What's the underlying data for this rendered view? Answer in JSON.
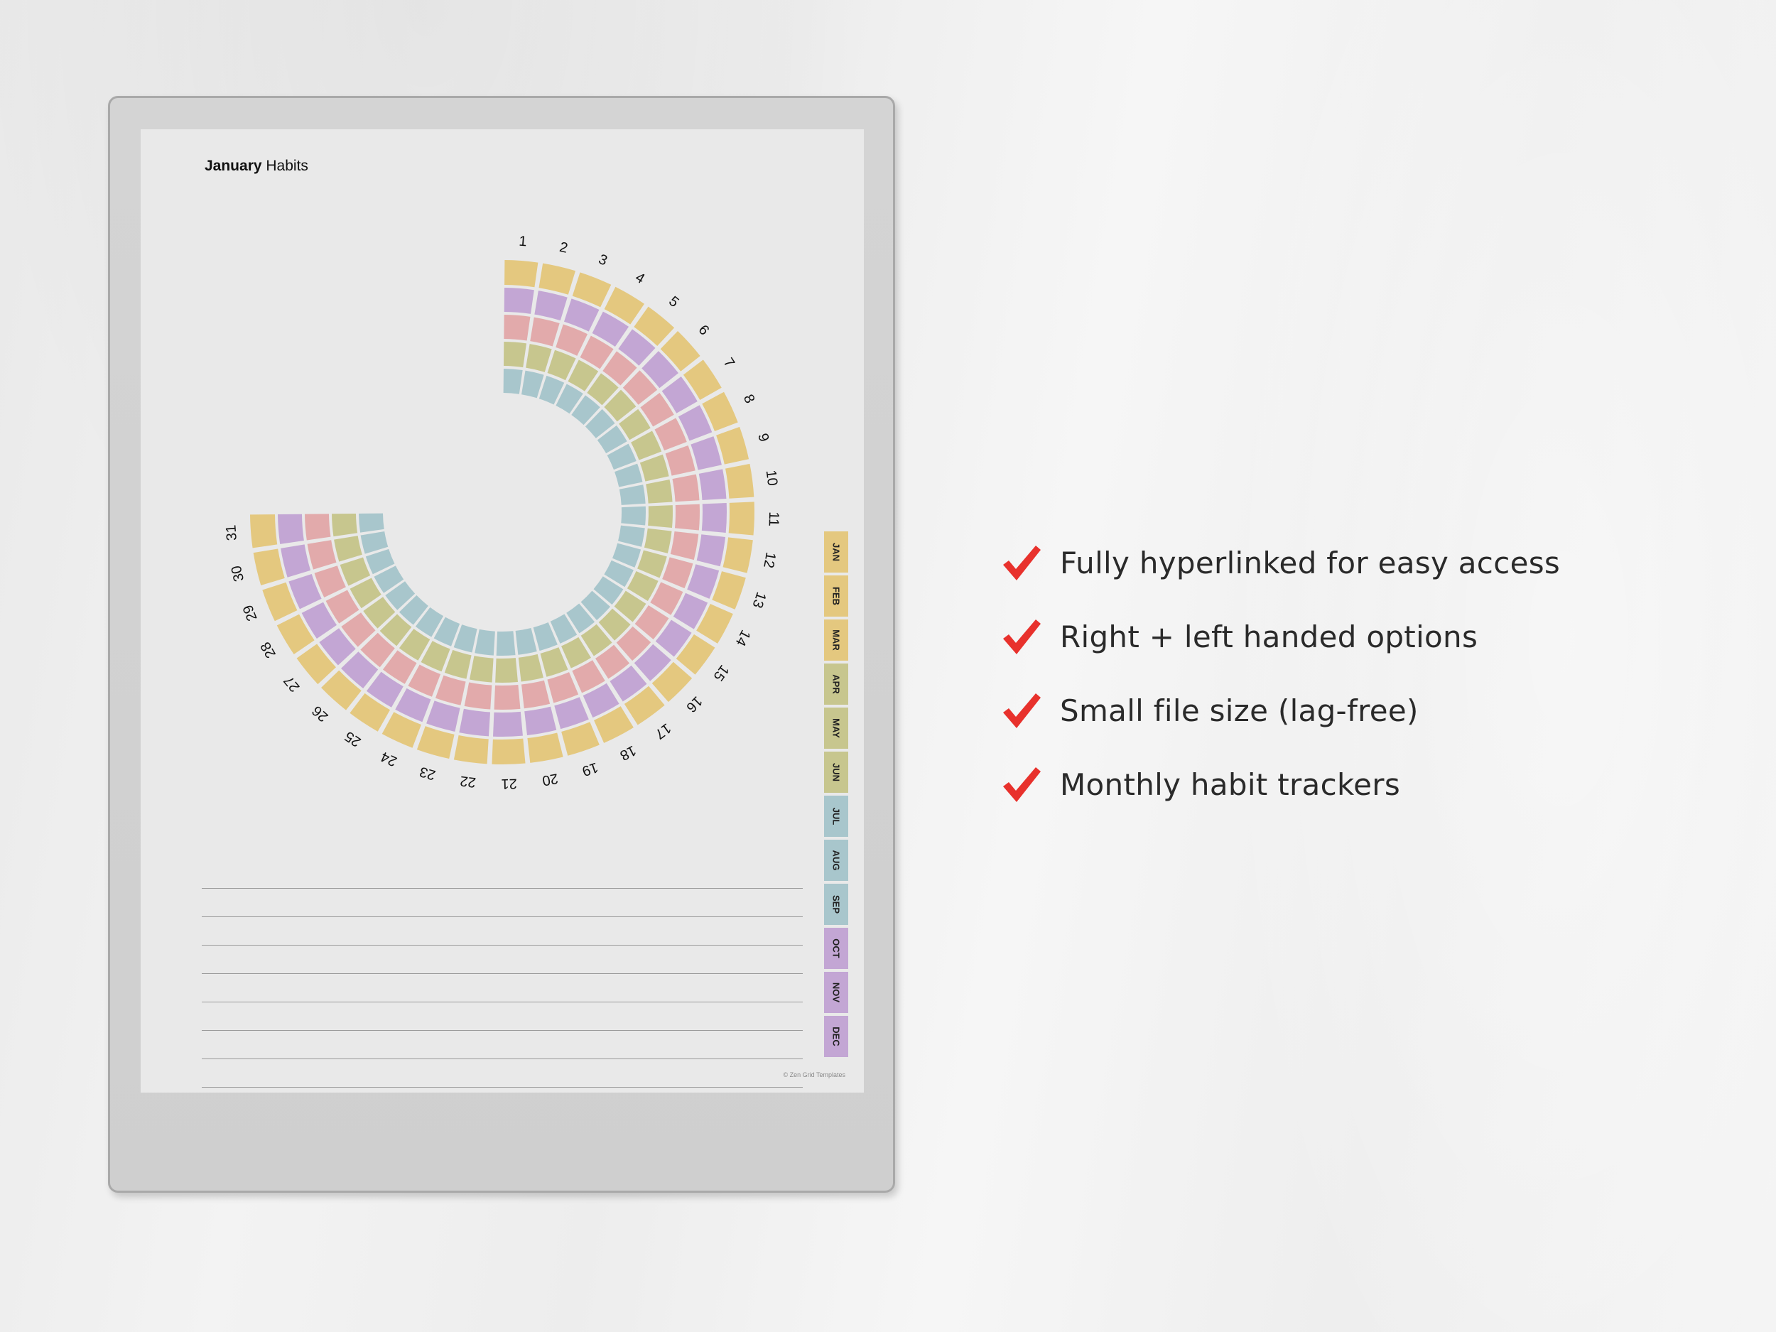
{
  "page": {
    "title_bold": "January",
    "title_rest": " Habits",
    "copyright": "© Zen Grid Templates"
  },
  "tracker": {
    "days": [
      "1",
      "2",
      "3",
      "4",
      "5",
      "6",
      "7",
      "8",
      "9",
      "10",
      "11",
      "12",
      "13",
      "14",
      "15",
      "16",
      "17",
      "18",
      "19",
      "20",
      "21",
      "22",
      "23",
      "24",
      "25",
      "26",
      "27",
      "28",
      "29",
      "30",
      "31"
    ],
    "ring_colors": [
      "#e4c87f",
      "#c3a6d4",
      "#e2aaab",
      "#c7c68e",
      "#a8c6cc"
    ]
  },
  "month_tabs": [
    {
      "label": "JAN",
      "color": "#e4c87f"
    },
    {
      "label": "FEB",
      "color": "#e4c87f"
    },
    {
      "label": "MAR",
      "color": "#e4c87f"
    },
    {
      "label": "APR",
      "color": "#c7c68e"
    },
    {
      "label": "MAY",
      "color": "#c7c68e"
    },
    {
      "label": "JUN",
      "color": "#c7c68e"
    },
    {
      "label": "JUL",
      "color": "#a8c6cc"
    },
    {
      "label": "AUG",
      "color": "#a8c6cc"
    },
    {
      "label": "SEP",
      "color": "#a8c6cc"
    },
    {
      "label": "OCT",
      "color": "#c3a6d4"
    },
    {
      "label": "NOV",
      "color": "#c3a6d4"
    },
    {
      "label": "DEC",
      "color": "#c3a6d4"
    }
  ],
  "notes": {
    "line_count": 8
  },
  "features": [
    {
      "icon": "check-icon",
      "text": "Fully hyperlinked for easy access"
    },
    {
      "icon": "check-icon",
      "text": "Right + left handed options"
    },
    {
      "icon": "check-icon",
      "text": "Small file size (lag-free)"
    },
    {
      "icon": "check-icon",
      "text": "Monthly habit trackers"
    }
  ],
  "accent_color": "#e8312c"
}
